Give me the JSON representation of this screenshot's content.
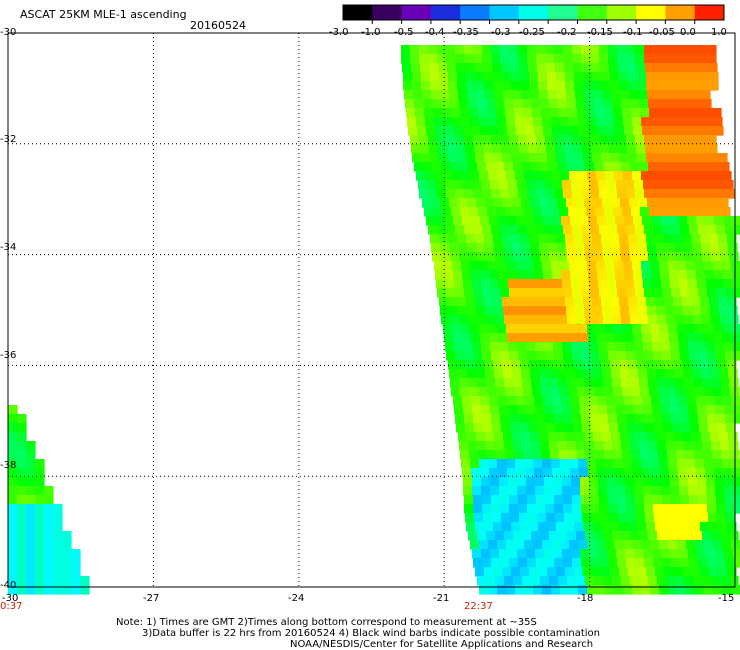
{
  "header": {
    "product": "ASCAT 25KM MLE-1 ascending",
    "date": "20160524"
  },
  "colorbar": {
    "labels": [
      "-3.0",
      "-1.0",
      "-0.5",
      "-0.4",
      "-0.35",
      "-0.3",
      "-0.25",
      "-0.2",
      "-0.15",
      "-0.1",
      "-0.05",
      "0.0",
      "1.0"
    ],
    "colors": [
      "#000000",
      "#3a0060",
      "#6a00b8",
      "#1a2ee0",
      "#0a7cff",
      "#00c8ff",
      "#00ffe8",
      "#20ff90",
      "#40ff10",
      "#a0ff00",
      "#ffff00",
      "#ffa000",
      "#ff2000"
    ]
  },
  "axes": {
    "x_labels": [
      "-30",
      "-27",
      "-24",
      "-21",
      "-18",
      "-15"
    ],
    "y_labels": [
      "-30",
      "-32",
      "-34",
      "-36",
      "-38",
      "-40"
    ],
    "xlim": [
      -30,
      -15
    ],
    "ylim": [
      -40,
      -30
    ]
  },
  "swaths": {
    "left_time": "0:37",
    "right_time": "22:37"
  },
  "notes": {
    "line1": "Note: 1) Times are GMT 2)Times along bottom correspond to measurement at ~35S",
    "line2": "3)Data buffer is 22 hrs from 20160524 4) Black wind barbs indicate possible contamination",
    "line3": "NOAA/NESDIS/Center for Satellite Applications and Research"
  }
}
